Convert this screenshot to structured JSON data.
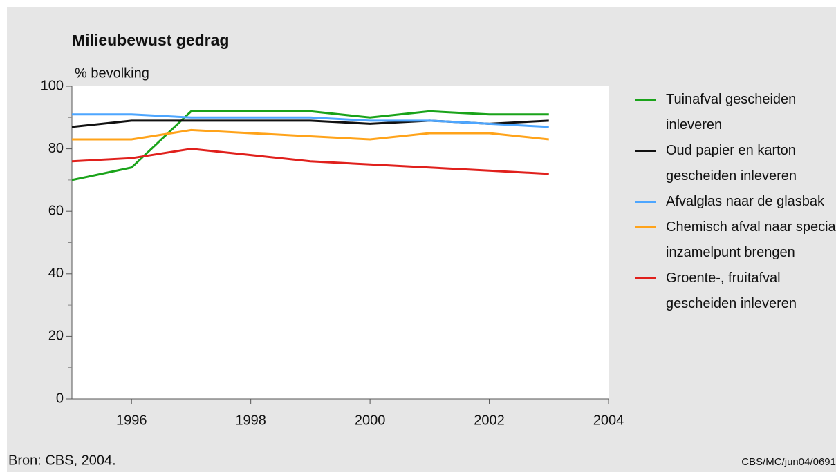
{
  "chart_data": {
    "type": "line",
    "title": "Milieubewust gedrag",
    "y_label": "% bevolking",
    "source": "Bron: CBS, 2004.",
    "code": "CBS/MC/jun04/0691",
    "x": [
      1995,
      1996,
      1997,
      1998,
      1999,
      2000,
      2001,
      2002,
      2003
    ],
    "xlim": [
      1995,
      2004
    ],
    "xticks": [
      1996,
      1998,
      2000,
      2002,
      2004
    ],
    "ylim": [
      0,
      100
    ],
    "yticks": [
      0,
      20,
      40,
      60,
      80,
      100
    ],
    "yminorticks": [
      10,
      30,
      50,
      70,
      90
    ],
    "series": [
      {
        "name": "Tuinafval gescheiden inleveren",
        "color": "#1aa31a",
        "values": [
          70,
          74,
          92,
          92,
          92,
          90,
          92,
          91,
          91
        ]
      },
      {
        "name": "Oud papier en karton gescheiden inleveren",
        "color": "#111111",
        "values": [
          87,
          89,
          89,
          89,
          89,
          88,
          89,
          88,
          89
        ]
      },
      {
        "name": "Afvalglas naar de glasbak",
        "color": "#4da6ff",
        "values": [
          91,
          91,
          90,
          90,
          90,
          89,
          89,
          88,
          87
        ]
      },
      {
        "name": "Chemisch afval naar speciaal inzamelpunt brengen",
        "color": "#ffa31a",
        "values": [
          83,
          83,
          86,
          85,
          84,
          83,
          85,
          85,
          83
        ]
      },
      {
        "name": "Groente-, fruitafval gescheiden inleveren",
        "color": "#e0201c",
        "values": [
          76,
          77,
          80,
          78,
          76,
          75,
          74,
          73,
          72
        ]
      }
    ]
  }
}
